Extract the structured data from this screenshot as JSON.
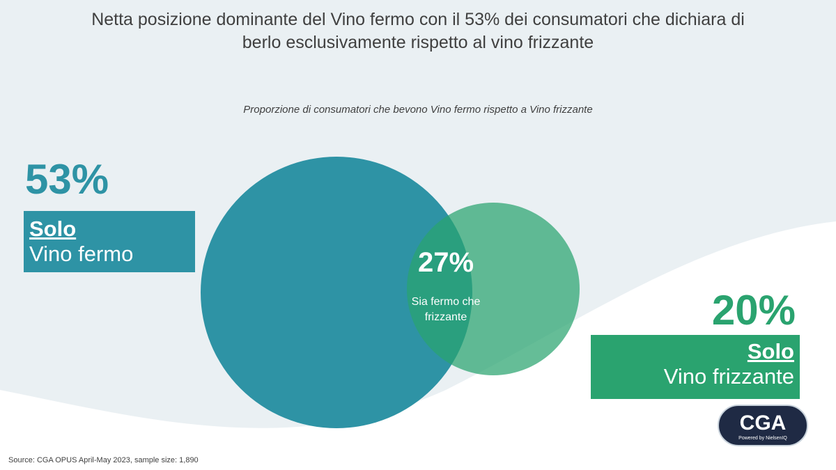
{
  "title_line1": "Netta posizione dominante del Vino fermo con il 53% dei consumatori che dichiara di",
  "title_line2": "berlo esclusivamente rispetto al vino frizzante",
  "subtitle": "Proporzione di consumatori che bevono Vino fermo rispetto a Vino frizzante",
  "chart_data": {
    "type": "venn",
    "sets": [
      {
        "label_bold": "Solo",
        "label": "Vino fermo",
        "value": 53,
        "display": "53%",
        "color": "#2e93a5"
      },
      {
        "label_bold": "Solo",
        "label": "Vino frizzante",
        "value": 20,
        "display": "20%",
        "color": "#2aa36f"
      }
    ],
    "overlap": {
      "label_line1": "Sia fermo che",
      "label_line2": "frizzante",
      "value": 27,
      "display": "27%"
    }
  },
  "source": "Source: CGA OPUS April-May 2023, sample size: 1,890",
  "logo": {
    "text": "CGA",
    "tagline": "Powered by NielsenIQ"
  }
}
